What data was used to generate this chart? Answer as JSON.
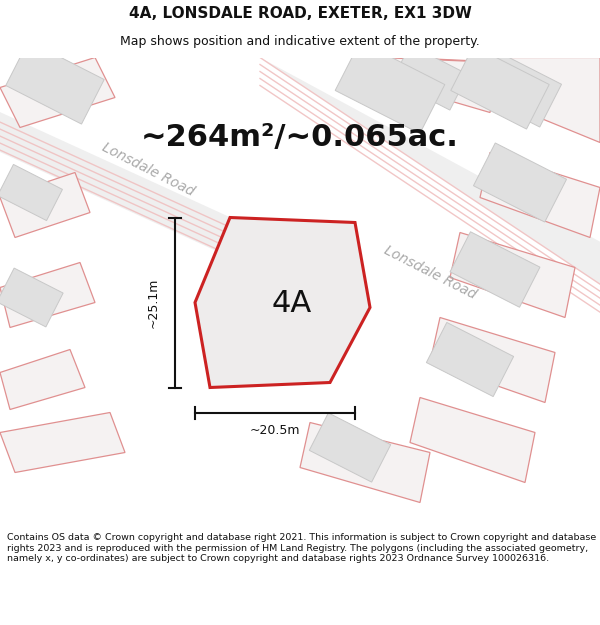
{
  "title": "4A, LONSDALE ROAD, EXETER, EX1 3DW",
  "subtitle": "Map shows position and indicative extent of the property.",
  "area_text": "~264m²/~0.065ac.",
  "label_4a": "4A",
  "dim_height": "~25.1m",
  "dim_width": "~20.5m",
  "road_label1": "Lonsdale Road",
  "road_label2": "Lonsdale Road",
  "footer": "Contains OS data © Crown copyright and database right 2021. This information is subject to Crown copyright and database rights 2023 and is reproduced with the permission of HM Land Registry. The polygons (including the associated geometry, namely x, y co-ordinates) are subject to Crown copyright and database rights 2023 Ordnance Survey 100026316.",
  "map_bg": "#f7f7f5",
  "building_fill": "#e0e0e0",
  "building_edge": "#c8c8c8",
  "plot_fill": "#e8e8e8",
  "plot_outline": "#e8a0a0",
  "main_fill": "#eeecec",
  "main_outline": "#cc2222",
  "road_fill": "#efefef",
  "road_stripe": "#f0c0c0",
  "dim_color": "#111111",
  "text_color": "#111111",
  "road_text_color": "#aaaaaa",
  "title_fontsize": 11,
  "subtitle_fontsize": 9,
  "area_fontsize": 22,
  "label_fontsize": 22,
  "footer_fontsize": 6.8
}
